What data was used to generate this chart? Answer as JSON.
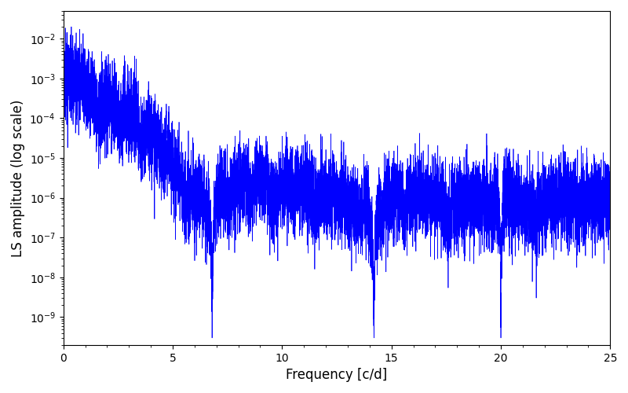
{
  "xlabel": "Frequency [c/d]",
  "ylabel": "LS amplitude (log scale)",
  "xlim": [
    0,
    25
  ],
  "ylim_log": [
    -9.7,
    -1.3
  ],
  "line_color": "#0000ff",
  "line_width": 0.5,
  "figsize": [
    8.0,
    5.0
  ],
  "dpi": 100,
  "freq_min": 0.005,
  "freq_max": 25.0,
  "n_points": 10000,
  "background_color": "#ffffff",
  "seed": 1234
}
